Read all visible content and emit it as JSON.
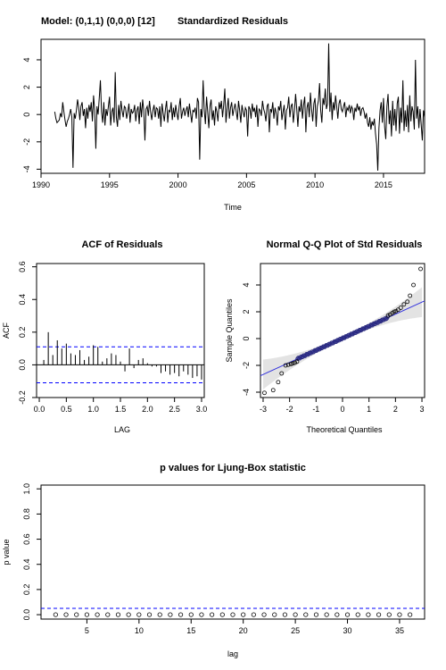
{
  "chart_data": [
    {
      "type": "line",
      "title": "Standardized Residuals",
      "model_label": "Model: (0,1,1) (0,0,0) [12]",
      "xlabel": "Time",
      "ylabel": "",
      "xlim": [
        1990,
        2018
      ],
      "ylim": [
        -4.3,
        5.5
      ],
      "xticks": [
        1990,
        1995,
        2000,
        2005,
        2010,
        2015
      ],
      "yticks": [
        -4,
        -2,
        0,
        2,
        4
      ],
      "start": 1991.0,
      "frequency": 12,
      "series": [
        {
          "values": [
            0.2,
            -0.3,
            -0.6,
            -0.5,
            -0.4,
            0.1,
            -0.2,
            0.9,
            0.2,
            -0.4,
            -0.9,
            -0.5,
            -0.3,
            0.0,
            0.4,
            -0.2,
            -3.9,
            0.1,
            -0.3,
            0.3,
            1.1,
            0.5,
            -0.4,
            0.6,
            0.9,
            -0.1,
            0.4,
            -1.0,
            0.5,
            -0.3,
            0.7,
            0.2,
            0.9,
            -0.5,
            1.4,
            0.3,
            -2.5,
            0.6,
            0.0,
            1.2,
            2.5,
            0.2,
            -0.6,
            0.9,
            -0.8,
            0.4,
            -0.1,
            0.6,
            1.3,
            -0.8,
            0.2,
            0.5,
            -0.6,
            3.1,
            -0.2,
            -0.9,
            0.7,
            -0.4,
            1.0,
            0.3,
            -0.2,
            0.6,
            0.5,
            -0.3,
            0.2,
            0.8,
            -0.6,
            0.4,
            0.1,
            0.2,
            0.7,
            -0.5,
            0.3,
            0.6,
            -0.7,
            0.9,
            -0.2,
            1.1,
            0.3,
            -1.9,
            0.4,
            0.6,
            -0.1,
            1.0,
            0.2,
            -0.4,
            0.3,
            0.7,
            -0.2,
            0.5,
            0.4,
            -0.3,
            0.6,
            -0.9,
            0.8,
            0.1,
            -0.5,
            0.4,
            1.0,
            -0.6,
            0.3,
            0.2,
            0.9,
            -0.4,
            0.5,
            -0.2,
            0.7,
            0.1,
            -0.4,
            0.6,
            1.2,
            -0.3,
            0.2,
            0.5,
            -0.1,
            0.3,
            0.6,
            -0.2,
            0.8,
            0.1,
            -0.6,
            0.3,
            0.2,
            0.5,
            -0.3,
            1.2,
            0.9,
            -3.3,
            0.4,
            -0.2,
            2.5,
            0.3,
            -0.7,
            1.3,
            0.2,
            -1.0,
            0.6,
            1.1,
            -0.4,
            0.3,
            -0.8,
            0.6,
            0.2,
            -0.5,
            0.9,
            0.4,
            1.0,
            -0.2,
            0.7,
            1.9,
            -0.6,
            0.4,
            1.2,
            -0.3,
            0.5,
            0.9,
            -0.1,
            0.4,
            0.8,
            0.2,
            -0.4,
            1.0,
            0.3,
            -0.6,
            0.7,
            0.2,
            -0.2,
            0.5,
            0.3,
            -1.6,
            0.6,
            0.4,
            -0.3,
            0.8,
            0.2,
            0.5,
            -0.2,
            0.7,
            -0.9,
            0.4,
            0.3,
            -0.1,
            1.0,
            0.4,
            0.1,
            -0.5,
            0.6,
            0.8,
            -1.3,
            0.4,
            0.2,
            0.9,
            -0.3,
            0.5,
            0.1,
            -0.8,
            0.6,
            0.3,
            1.0,
            -0.4,
            0.2,
            0.7,
            -1.1,
            0.3,
            0.5,
            1.3,
            -0.2,
            0.6,
            0.8,
            -0.6,
            0.3,
            1.5,
            0.4,
            -0.9,
            0.6,
            0.2,
            1.1,
            -0.3,
            0.7,
            1.3,
            -1.3,
            0.5,
            0.9,
            -0.2,
            1.6,
            0.4,
            -0.5,
            0.8,
            1.2,
            -0.9,
            0.6,
            1.0,
            2.3,
            0.3,
            -0.6,
            1.2,
            0.7,
            1.9,
            0.4,
            0.8,
            5.2,
            0.2,
            1.6,
            -0.4,
            0.9,
            0.3,
            1.4,
            0.6,
            -0.3,
            0.8,
            1.1,
            0.4,
            0.2,
            0.6,
            0.9,
            -0.2,
            0.5,
            0.3,
            0.7,
            0.1,
            0.6,
            0.4,
            -0.4,
            0.5,
            0.2,
            0.8,
            0.3,
            0.6,
            -0.1,
            0.4,
            0.5,
            0.2,
            -0.3,
            0.1,
            -0.6,
            -0.9,
            -0.2,
            -1.1,
            -0.5,
            -0.8,
            -0.3,
            -1.4,
            -2.2,
            -4.1,
            -1.0,
            0.3,
            0.9,
            -0.6,
            1.2,
            -0.9,
            -1.8,
            0.6,
            1.5,
            -0.7,
            0.3,
            -1.6,
            1.0,
            -0.8,
            0.4,
            -1.2,
            0.8,
            1.3,
            -1.4,
            0.5,
            -0.6,
            2.5,
            -1.2,
            0.3,
            -0.9,
            0.7,
            -1.3,
            1.4,
            -0.5,
            0.6,
            0.2,
            -1.1,
            4.0,
            -0.3,
            0.6,
            -1.0,
            0.4,
            -0.7,
            -1.9,
            0.3,
            -0.2
          ]
        }
      ]
    },
    {
      "type": "bar",
      "title": "ACF of Residuals",
      "xlabel": "LAG",
      "ylabel": "ACF",
      "xlim": [
        -0.05,
        3.05
      ],
      "ylim": [
        -0.2,
        0.62
      ],
      "xticks": [
        0.0,
        0.5,
        1.0,
        1.5,
        2.0,
        2.5,
        3.0
      ],
      "yticks": [
        -0.2,
        0.0,
        0.2,
        0.4,
        0.6
      ],
      "bound": 0.11,
      "lag_step": 0.083333,
      "values": [
        0.03,
        0.2,
        0.06,
        0.15,
        0.1,
        0.13,
        0.07,
        0.06,
        0.09,
        0.03,
        0.05,
        0.12,
        0.11,
        0.02,
        0.04,
        0.07,
        0.06,
        0.02,
        -0.04,
        0.1,
        -0.02,
        0.03,
        0.04,
        0.01,
        -0.01,
        -0.01,
        -0.05,
        -0.04,
        -0.06,
        -0.05,
        -0.07,
        -0.04,
        -0.06,
        -0.08,
        -0.07,
        -0.09
      ]
    },
    {
      "type": "scatter",
      "title": "Normal Q-Q Plot of Std Residuals",
      "xlabel": "Theoretical Quantiles",
      "ylabel": "Sample Quantiles",
      "xlim": [
        -3.1,
        3.1
      ],
      "ylim": [
        -4.4,
        5.6
      ],
      "xticks": [
        -3,
        -2,
        -1,
        0,
        1,
        2,
        3
      ],
      "yticks": [
        -4,
        -2,
        0,
        2,
        4
      ],
      "line": {
        "intercept": 0.02,
        "slope": 0.9
      },
      "outer_points": [
        [
          -2.95,
          -4.05
        ],
        [
          -2.62,
          -3.85
        ],
        [
          -2.43,
          -3.25
        ],
        [
          -2.3,
          -2.6
        ],
        [
          -2.15,
          -2.0
        ],
        [
          -2.05,
          -1.95
        ],
        [
          -1.95,
          -1.9
        ],
        [
          -1.88,
          -1.85
        ],
        [
          -1.8,
          -1.8
        ],
        [
          -1.72,
          -1.72
        ],
        [
          1.72,
          1.72
        ],
        [
          1.8,
          1.8
        ],
        [
          1.88,
          1.9
        ],
        [
          1.95,
          2.0
        ],
        [
          2.02,
          2.05
        ],
        [
          2.1,
          2.15
        ],
        [
          2.2,
          2.3
        ],
        [
          2.32,
          2.55
        ],
        [
          2.45,
          2.75
        ],
        [
          2.55,
          3.2
        ],
        [
          2.68,
          4.0
        ],
        [
          2.95,
          5.2
        ]
      ]
    },
    {
      "type": "scatter",
      "title": "p values for Ljung-Box statistic",
      "xlabel": "lag",
      "ylabel": "p value",
      "xlim": [
        0.6,
        37.4
      ],
      "ylim": [
        -0.035,
        1.03
      ],
      "xticks": [
        5,
        10,
        15,
        20,
        25,
        30,
        35
      ],
      "yticks": [
        0.0,
        0.2,
        0.4,
        0.6,
        0.8,
        1.0
      ],
      "significance": 0.05,
      "x": [
        2,
        3,
        4,
        5,
        6,
        7,
        8,
        9,
        10,
        11,
        12,
        13,
        14,
        15,
        16,
        17,
        18,
        19,
        20,
        21,
        22,
        23,
        24,
        25,
        26,
        27,
        28,
        29,
        30,
        31,
        32,
        33,
        34,
        35,
        36
      ],
      "y": [
        0,
        0,
        0,
        0,
        0,
        0,
        0,
        0,
        0,
        0,
        0,
        0,
        0,
        0,
        0,
        0,
        0,
        0,
        0,
        0,
        0,
        0,
        0,
        0,
        0,
        0,
        0,
        0,
        0,
        0,
        0,
        0,
        0,
        0,
        0
      ]
    }
  ],
  "colors": {
    "line": "#000000",
    "bound": "#0000ff",
    "qq_line": "#3333dd",
    "band": "#e3e3e3",
    "qq_dense": "#2a2a80"
  }
}
